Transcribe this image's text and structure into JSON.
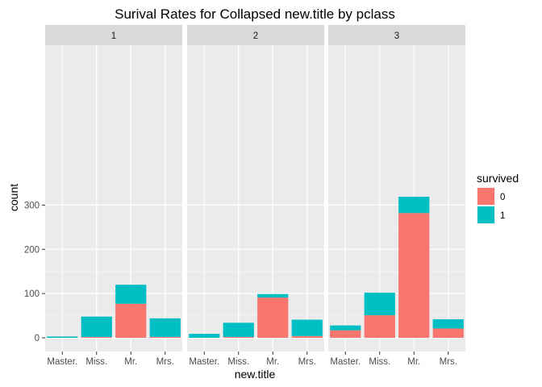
{
  "chart_data": {
    "type": "bar",
    "stacked": true,
    "title": "Surival Rates for Collapsed new.title by pclass",
    "xlabel": "new.title",
    "ylabel": "count",
    "ylim": [
      0,
      330
    ],
    "yticks": [
      0,
      100,
      200,
      300
    ],
    "grid": true,
    "categories": [
      "Master.",
      "Miss.",
      "Mr.",
      "Mrs."
    ],
    "legend": {
      "title": "survived",
      "position": "right",
      "entries": [
        {
          "label": "0",
          "color": "#F8766D"
        },
        {
          "label": "1",
          "color": "#00BFC4"
        }
      ]
    },
    "facets": [
      {
        "label": "1",
        "series": [
          {
            "name": "0",
            "values": [
              0,
              2,
              77,
              2
            ]
          },
          {
            "name": "1",
            "values": [
              3,
              46,
              43,
              42
            ]
          }
        ]
      },
      {
        "label": "2",
        "series": [
          {
            "name": "0",
            "values": [
              0,
              2,
              91,
              4
            ]
          },
          {
            "name": "1",
            "values": [
              9,
              32,
              8,
              37
            ]
          }
        ]
      },
      {
        "label": "3",
        "series": [
          {
            "name": "0",
            "values": [
              17,
              51,
              282,
              21
            ]
          },
          {
            "name": "1",
            "values": [
              11,
              51,
              37,
              21
            ]
          }
        ]
      }
    ]
  }
}
